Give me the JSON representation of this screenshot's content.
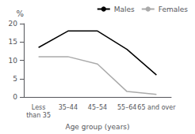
{
  "chart_data": {
    "type": "line",
    "categories": [
      "Less\nthan 35",
      "35–44",
      "45–54",
      "55–64",
      "65 and over"
    ],
    "series": [
      {
        "name": "Males",
        "color": "#000000",
        "values": [
          13.5,
          18.0,
          18.0,
          13.0,
          6.0
        ]
      },
      {
        "name": "Females",
        "color": "#aaaaaa",
        "values": [
          11.0,
          11.0,
          9.0,
          1.5,
          0.7
        ]
      }
    ],
    "xlabel": "Age group (years)",
    "ylabel": "%",
    "ylim": [
      0,
      20
    ],
    "yticks": [
      0,
      5,
      10,
      15,
      20
    ],
    "grid": false,
    "legend": "upper right"
  }
}
